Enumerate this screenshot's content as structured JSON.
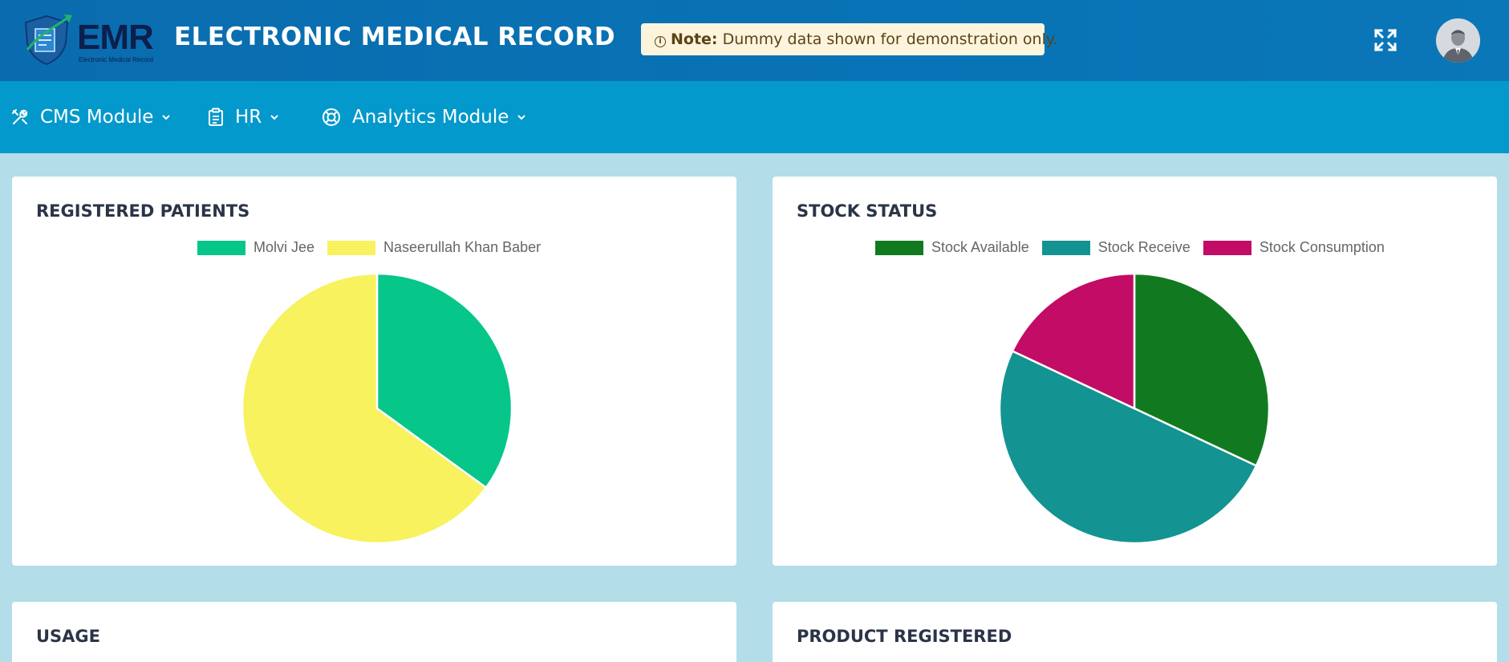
{
  "header": {
    "logo_text": "EMR",
    "logo_subtext": "Electronic Medical Record",
    "app_title": "ELECTRONIC MEDICAL RECORD",
    "note_label": "Note:",
    "note_text": "Dummy data shown for demonstration only.",
    "expand_icon": "fullscreen-expand-icon",
    "avatar_icon": "user-avatar-icon"
  },
  "nav": {
    "items": [
      {
        "label": "CMS Module",
        "icon": "tools-icon"
      },
      {
        "label": "HR",
        "icon": "clipboard-icon"
      },
      {
        "label": "Analytics Module",
        "icon": "lifebuoy-icon"
      }
    ]
  },
  "cards": {
    "registered_patients": {
      "title": "REGISTERED PATIENTS"
    },
    "stock_status": {
      "title": "STOCK STATUS"
    },
    "usage": {
      "title": "USAGE"
    },
    "product_registered": {
      "title": "PRODUCT REGISTERED"
    }
  },
  "chart_data": [
    {
      "type": "pie",
      "title": "REGISTERED PATIENTS",
      "legend_position": "top-center",
      "categories": [
        "Molvi Jee",
        "Naseerullah Khan Baber"
      ],
      "values": [
        35,
        65
      ],
      "colors": [
        "#06c68a",
        "#f7f25e"
      ]
    },
    {
      "type": "pie",
      "title": "STOCK STATUS",
      "legend_position": "top-center",
      "categories": [
        "Stock Available",
        "Stock Receive",
        "Stock Consumption"
      ],
      "values": [
        32,
        50,
        18
      ],
      "colors": [
        "#117a20",
        "#139391",
        "#c20c66"
      ]
    }
  ],
  "colors": {
    "topbar": "#0873b6",
    "navbar": "#0399cc",
    "background": "#b2dde9",
    "note_bg": "#fdf4dd"
  }
}
